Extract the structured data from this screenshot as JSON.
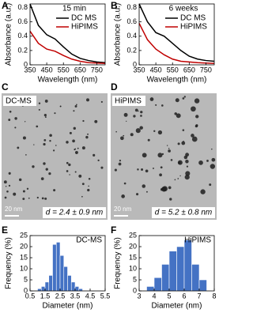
{
  "chart_data": [
    {
      "type": "line",
      "panel_label": "A",
      "title": "15 min",
      "x_label": "Wavelength (nm)",
      "y_label": "Absorbance (a.u.)",
      "x": [
        350,
        400,
        450,
        500,
        550,
        600,
        650,
        700,
        750,
        800
      ],
      "series": [
        {
          "name": "DC MS",
          "color": "#000000",
          "values": [
            0.85,
            0.55,
            0.42,
            0.36,
            0.25,
            0.15,
            0.09,
            0.06,
            0.04,
            0.03
          ]
        },
        {
          "name": "HiPIMS",
          "color": "#c00000",
          "values": [
            0.47,
            0.3,
            0.22,
            0.19,
            0.13,
            0.08,
            0.05,
            0.03,
            0.025,
            0.02
          ]
        }
      ],
      "xlim": [
        350,
        800
      ],
      "xticks": [
        350,
        450,
        550,
        650,
        750
      ],
      "ylim": [
        0,
        0.85
      ],
      "yticks": [
        0,
        0.2,
        0.4,
        0.6,
        0.8
      ]
    },
    {
      "type": "line",
      "panel_label": "B",
      "title": "6 weeks",
      "x_label": "Wavelength (nm)",
      "y_label": "Absorbance (a.u.)",
      "x": [
        350,
        400,
        450,
        500,
        550,
        600,
        650,
        700,
        750,
        800
      ],
      "series": [
        {
          "name": "DC MS",
          "color": "#000000",
          "values": [
            0.85,
            0.6,
            0.45,
            0.4,
            0.3,
            0.2,
            0.12,
            0.08,
            0.06,
            0.05
          ]
        },
        {
          "name": "HiPIMS",
          "color": "#c00000",
          "values": [
            0.58,
            0.35,
            0.22,
            0.14,
            0.08,
            0.05,
            0.04,
            0.03,
            0.025,
            0.02
          ]
        }
      ],
      "xlim": [
        350,
        800
      ],
      "xticks": [
        350,
        450,
        550,
        650,
        750
      ],
      "ylim": [
        0,
        0.85
      ],
      "yticks": [
        0,
        0.2,
        0.4,
        0.6,
        0.8
      ]
    },
    {
      "type": "histogram",
      "panel_label": "E",
      "title": "DC-MS",
      "x_label": "Diameter (nm)",
      "y_label": "Frequency (%)",
      "color": "#4472c4",
      "bins": [
        1.0,
        1.25,
        1.5,
        1.75,
        2.0,
        2.25,
        2.5,
        2.75,
        3.0,
        3.25,
        3.5,
        3.75,
        4.0
      ],
      "values": [
        1,
        2,
        4,
        7,
        21,
        22,
        16,
        11,
        7,
        4,
        2,
        1
      ],
      "xlim": [
        0.5,
        5.5
      ],
      "xticks": [
        0.5,
        1.5,
        2.5,
        3.5,
        4.5,
        5.5
      ],
      "ylim": [
        0,
        25
      ],
      "yticks": [
        0,
        5,
        10,
        15,
        20,
        25
      ]
    },
    {
      "type": "histogram",
      "panel_label": "F",
      "title": "HiPIMS",
      "x_label": "Diameter (nm)",
      "y_label": "Frequency (%)",
      "color": "#4472c4",
      "bins": [
        3.5,
        4.0,
        4.5,
        5.0,
        5.5,
        6.0,
        6.5,
        7.0,
        7.5
      ],
      "values": [
        2,
        6,
        12,
        18,
        20,
        23,
        12,
        5
      ],
      "xlim": [
        3,
        8
      ],
      "xticks": [
        3,
        4,
        5,
        6,
        7,
        8
      ],
      "ylim": [
        0,
        25
      ],
      "yticks": [
        0,
        5,
        10,
        15,
        20,
        25
      ]
    }
  ],
  "images": [
    {
      "panel_label": "C",
      "label": "DC-MS",
      "scale_bar": "20 nm",
      "caption": "d = 2.4 ± 0.9 nm"
    },
    {
      "panel_label": "D",
      "label": "HiPIMS",
      "scale_bar": "20 nm",
      "caption": "d = 5.2 ± 0.8 nm"
    }
  ]
}
